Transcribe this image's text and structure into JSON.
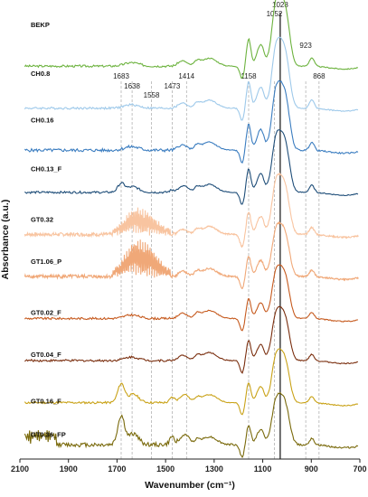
{
  "chart_data": {
    "type": "line",
    "xlabel": "Wavenumber (cm⁻¹)",
    "ylabel": "Absorbance (a.u.)",
    "xlim": [
      2100,
      700
    ],
    "x_reversed": true,
    "x_ticks": [
      2100,
      1900,
      1700,
      1500,
      1300,
      1100,
      900,
      700
    ],
    "x_tick_labels": [
      "2100",
      "1900",
      "1700",
      "1500",
      "1300",
      "1100",
      "900",
      "700"
    ],
    "y_ticks_shown": false,
    "grid": false,
    "series_offset_units": 1,
    "solid_reference_line": 1028,
    "peak_markers": [
      {
        "x": 1683,
        "label": "1683"
      },
      {
        "x": 1638,
        "label": "1638"
      },
      {
        "x": 1558,
        "label": "1558"
      },
      {
        "x": 1473,
        "label": "1473"
      },
      {
        "x": 1414,
        "label": "1414"
      },
      {
        "x": 1158,
        "label": "1158"
      },
      {
        "x": 1052,
        "label": "1052"
      },
      {
        "x": 1028,
        "label": "1028"
      },
      {
        "x": 923,
        "label": "923"
      },
      {
        "x": 868,
        "label": "868"
      }
    ],
    "series": [
      {
        "name": "BEKP",
        "color": "#6db33f",
        "noise": 0.03,
        "amide": 0,
        "lignin": 0,
        "fp": 0,
        "peak": 1.62,
        "labelY": 9.55
      },
      {
        "name": "CH0.8",
        "color": "#9ec9ea",
        "noise": 0.03,
        "amide": 0,
        "lignin": 0,
        "fp": 0,
        "peak": 1.58,
        "labelY": 8.45
      },
      {
        "name": "CH0.16",
        "color": "#3b7dc0",
        "noise": 0.045,
        "amide": 0,
        "lignin": 0,
        "fp": 0,
        "peak": 1.55,
        "labelY": 7.4
      },
      {
        "name": "CH0.13_F",
        "color": "#1f4e79",
        "noise": 0.03,
        "amide": 0.2,
        "lignin": 0,
        "fp": 0,
        "peak": 1.4,
        "labelY": 6.3
      },
      {
        "name": "GT0.32",
        "color": "#f8c4a0",
        "noise": 0.05,
        "amide": 0,
        "lignin": 1.0,
        "fp": 0,
        "peak": 1.35,
        "labelY": 5.15
      },
      {
        "name": "GT1.06_P",
        "color": "#f0a878",
        "noise": 0.05,
        "amide": 0,
        "lignin": 1.4,
        "fp": 0,
        "peak": 1.2,
        "labelY": 4.2
      },
      {
        "name": "GT0.02_F",
        "color": "#c65a1e",
        "noise": 0.03,
        "amide": 0,
        "lignin": 0,
        "fp": 0,
        "peak": 1.2,
        "labelY": 3.05
      },
      {
        "name": "GT0.04_F",
        "color": "#7a2e0e",
        "noise": 0.03,
        "amide": 0,
        "lignin": 0,
        "fp": 0,
        "peak": 1.2,
        "labelY": 2.1
      },
      {
        "name": "GT0.16_F",
        "color": "#c9a217",
        "noise": 0.03,
        "amide": 0.45,
        "lignin": 0,
        "fp": 0,
        "peak": 1.2,
        "labelY": 1.05
      },
      {
        "name": "GT0.36_FP",
        "color": "#7a6a0c",
        "noise": 0.06,
        "amide": 0.7,
        "lignin": 0,
        "fp": 0.3,
        "peak": 1.15,
        "labelY": 0.3
      }
    ]
  }
}
